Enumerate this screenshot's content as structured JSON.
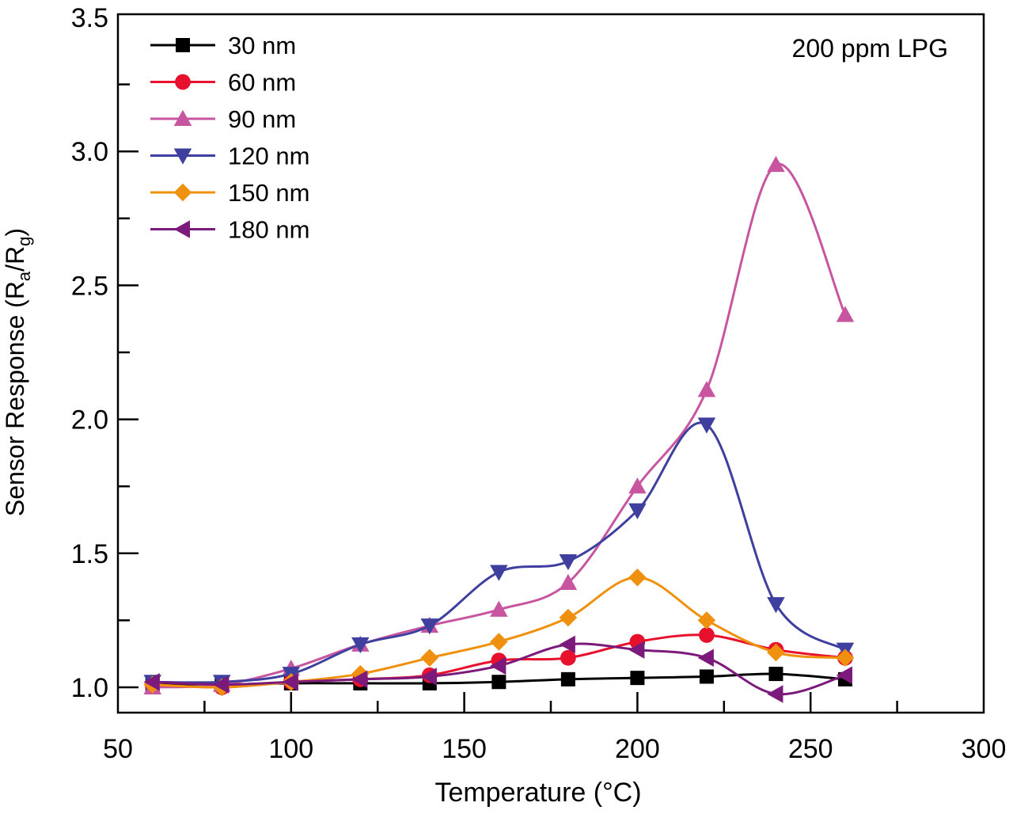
{
  "chart_data": {
    "type": "line",
    "title": "",
    "annotation": "200 ppm LPG",
    "xlabel": "Temperature (°C)",
    "xlabel_parts": {
      "main": "Temperature (",
      "sup": "o",
      "end": "C)"
    },
    "ylabel": "Sensor Response (Ra/Rg)",
    "ylabel_parts": {
      "main": "Sensor Response (R",
      "sub1": "a",
      "mid": "/R",
      "sub2": "g",
      "end": ")"
    },
    "xlim": [
      50,
      300
    ],
    "ylim": [
      0.9,
      3.5
    ],
    "x_ticks": [
      "50",
      "100",
      "150",
      "200",
      "250",
      "300"
    ],
    "y_ticks": [
      "1.0",
      "1.5",
      "2.0",
      "2.5",
      "3.0",
      "3.5"
    ],
    "grid": false,
    "legend_position": "top-left",
    "x": [
      60,
      80,
      100,
      120,
      140,
      160,
      180,
      200,
      220,
      240,
      260
    ],
    "series": [
      {
        "name": "30 nm",
        "color": "#000000",
        "marker": "square",
        "values": [
          1.01,
          1.01,
          1.015,
          1.015,
          1.015,
          1.02,
          1.03,
          1.035,
          1.04,
          1.05,
          1.03
        ]
      },
      {
        "name": "60 nm",
        "color": "#e8112d",
        "marker": "circle",
        "values": [
          1.01,
          1.0,
          1.02,
          1.03,
          1.045,
          1.1,
          1.11,
          1.17,
          1.195,
          1.14,
          1.11
        ]
      },
      {
        "name": "90 nm",
        "color": "#c8559f",
        "marker": "triangle-up",
        "values": [
          1.0,
          1.01,
          1.07,
          1.16,
          1.23,
          1.29,
          1.39,
          1.75,
          2.11,
          2.95,
          2.39
        ]
      },
      {
        "name": "120 nm",
        "color": "#3f3f9f",
        "marker": "triangle-down",
        "values": [
          1.02,
          1.02,
          1.05,
          1.16,
          1.23,
          1.43,
          1.47,
          1.66,
          1.98,
          1.31,
          1.14
        ]
      },
      {
        "name": "150 nm",
        "color": "#f0900f",
        "marker": "diamond",
        "values": [
          1.01,
          1.0,
          1.02,
          1.05,
          1.11,
          1.17,
          1.26,
          1.41,
          1.25,
          1.13,
          1.11
        ]
      },
      {
        "name": "180 nm",
        "color": "#7b1a7b",
        "marker": "triangle-left",
        "values": [
          1.02,
          1.01,
          1.02,
          1.03,
          1.04,
          1.08,
          1.16,
          1.14,
          1.11,
          0.975,
          1.045
        ]
      }
    ]
  }
}
